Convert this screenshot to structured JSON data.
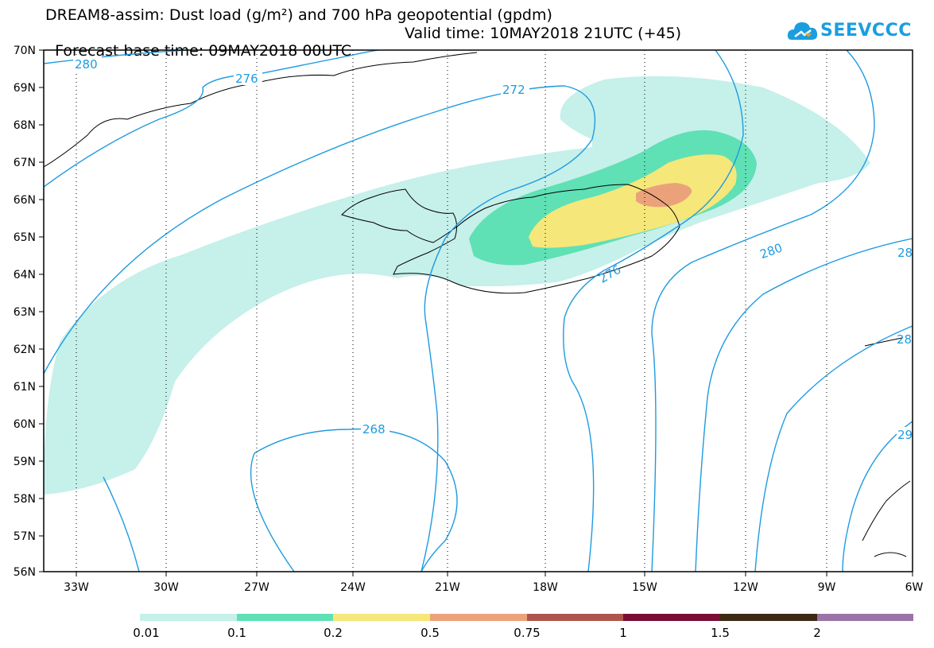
{
  "header": {
    "title_line1": "DREAM8-assim: Dust load (g/m²) and 700 hPa geopotential (gpdm)",
    "base_time": "Forecast base time: 09MAY2018 00UTC",
    "valid_time": "Valid time: 10MAY2018 21UTC (+45)"
  },
  "logo": {
    "text": "SEEVCCC",
    "icon": "cloud-logo-icon",
    "color": "#1a9ee0"
  },
  "map": {
    "lon_range": [
      -34.5,
      -6
    ],
    "lat_range": [
      56,
      70
    ],
    "lat_labels": [
      "70N",
      "69N",
      "68N",
      "67N",
      "66N",
      "65N",
      "64N",
      "63N",
      "62N",
      "61N",
      "60N",
      "59N",
      "58N",
      "57N",
      "56N"
    ],
    "lon_labels": [
      "33W",
      "30W",
      "27W",
      "24W",
      "21W",
      "18W",
      "15W",
      "12W",
      "9W",
      "6W"
    ],
    "contour_color": "#1e9be0",
    "contour_labels": [
      "280",
      "276",
      "272",
      "268",
      "276",
      "280",
      "28",
      "28",
      "29"
    ]
  },
  "colorbar": {
    "labels": [
      "0.01",
      "0.1",
      "0.2",
      "0.5",
      "0.75",
      "1",
      "1.5",
      "2"
    ],
    "colors": [
      "#c6f0ea",
      "#5fe0b5",
      "#f5e77a",
      "#eba27a",
      "#b0554d",
      "#7a0d35",
      "#3b2a13",
      "#9b73a6"
    ]
  }
}
